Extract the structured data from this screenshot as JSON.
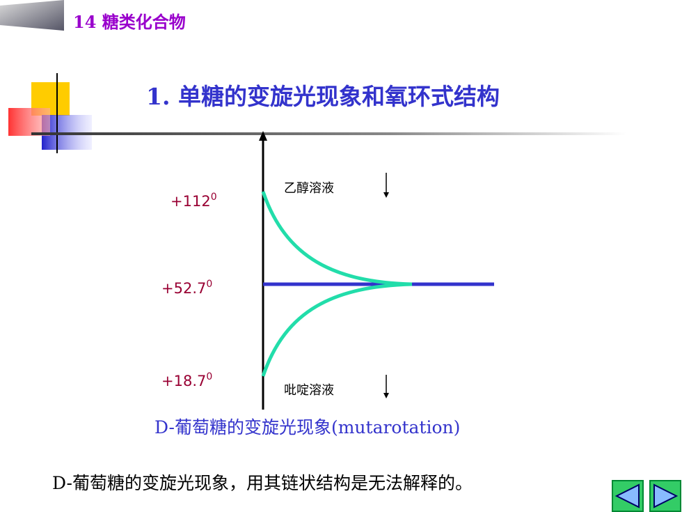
{
  "header": {
    "chapter": "14 糖类化合物"
  },
  "title": "1. 单糖的变旋光现象和氧环式结构",
  "diagram": {
    "levels": [
      {
        "main": "+112",
        "sup": "0"
      },
      {
        "main": "+52.7",
        "sup": "0"
      },
      {
        "main": "+18.7",
        "sup": "0"
      }
    ],
    "solvents": [
      "乙醇溶液",
      "吡啶溶液"
    ],
    "caption": "D-葡萄糖的变旋光现象(mutarotation)"
  },
  "conclusion": "D-葡萄糖的变旋光现象，用其链状结构是无法解释的。"
}
